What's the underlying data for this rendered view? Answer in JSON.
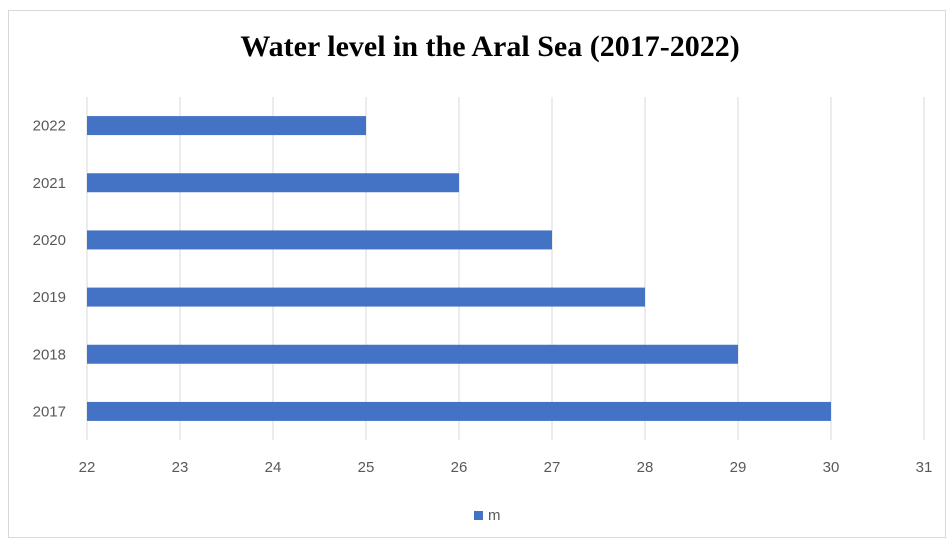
{
  "chart_data": {
    "type": "bar",
    "orientation": "horizontal",
    "title": "Water level in the Aral Sea (2017-2022)",
    "xlabel": "",
    "ylabel": "",
    "categories": [
      "2022",
      "2021",
      "2020",
      "2019",
      "2018",
      "2017"
    ],
    "series": [
      {
        "name": "m",
        "values": [
          25,
          26,
          27,
          28,
          29,
          30
        ],
        "color": "#4472C4"
      }
    ],
    "xlim": [
      22,
      31
    ],
    "x_ticks": [
      "22",
      "23",
      "24",
      "25",
      "26",
      "27",
      "28",
      "29",
      "30",
      "31"
    ],
    "grid": "vertical",
    "gridline_color": "#d9d9d9",
    "legend_position": "bottom"
  }
}
